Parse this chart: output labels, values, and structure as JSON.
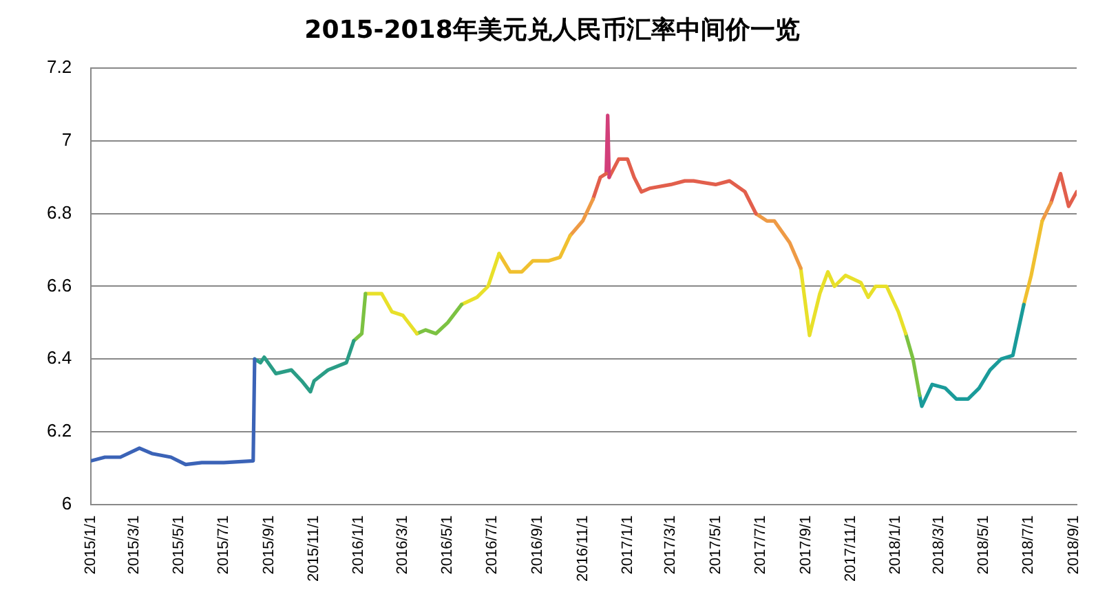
{
  "chart_data": {
    "type": "line",
    "title": "2015-2018年美元兑人民币汇率中间价一览",
    "legend": false,
    "grid": "y",
    "marker": "none",
    "line_style": "solid",
    "xlim": [
      "2015-01-01",
      "2018-09-05"
    ],
    "xticks": [
      {
        "value": "2015-01-01",
        "label": "2015/1/1"
      },
      {
        "value": "2015-03-01",
        "label": "2015/3/1"
      },
      {
        "value": "2015-05-01",
        "label": "2015/5/1"
      },
      {
        "value": "2015-07-01",
        "label": "2015/7/1"
      },
      {
        "value": "2015-09-01",
        "label": "2015/9/1"
      },
      {
        "value": "2015-11-01",
        "label": "2015/11/1"
      },
      {
        "value": "2016-01-01",
        "label": "2016/1/1"
      },
      {
        "value": "2016-03-01",
        "label": "2016/3/1"
      },
      {
        "value": "2016-05-01",
        "label": "2016/5/1"
      },
      {
        "value": "2016-07-01",
        "label": "2016/7/1"
      },
      {
        "value": "2016-09-01",
        "label": "2016/9/1"
      },
      {
        "value": "2016-11-01",
        "label": "2016/11/1"
      },
      {
        "value": "2017-01-01",
        "label": "2017/1/1"
      },
      {
        "value": "2017-03-01",
        "label": "2017/3/1"
      },
      {
        "value": "2017-05-01",
        "label": "2017/5/1"
      },
      {
        "value": "2017-07-01",
        "label": "2017/7/1"
      },
      {
        "value": "2017-09-01",
        "label": "2017/9/1"
      },
      {
        "value": "2017-11-01",
        "label": "2017/11/1"
      },
      {
        "value": "2018-01-01",
        "label": "2018/1/1"
      },
      {
        "value": "2018-03-01",
        "label": "2018/3/1"
      },
      {
        "value": "2018-05-01",
        "label": "2018/5/1"
      },
      {
        "value": "2018-07-01",
        "label": "2018/7/1"
      },
      {
        "value": "2018-09-01",
        "label": "2018/9/1"
      }
    ],
    "ylim": [
      6,
      7.2
    ],
    "yticks": [
      6,
      6.2,
      6.4,
      6.6,
      6.8,
      7,
      7.2
    ],
    "series": [
      {
        "color": "#3b63b7",
        "x": [
          "2015-01-01",
          "2015-01-20",
          "2015-02-10",
          "2015-03-08",
          "2015-03-25",
          "2015-04-20",
          "2015-05-10",
          "2015-06-01",
          "2015-07-01",
          "2015-08-10",
          "2015-08-12"
        ],
        "values": [
          6.12,
          6.13,
          6.13,
          6.155,
          6.14,
          6.13,
          6.11,
          6.115,
          6.115,
          6.12,
          6.4
        ]
      },
      {
        "color": "#2a9d86",
        "x": [
          "2015-08-12",
          "2015-08-20",
          "2015-08-25",
          "2015-09-10",
          "2015-10-01",
          "2015-10-15",
          "2015-10-27",
          "2015-11-01",
          "2015-11-20",
          "2015-12-15",
          "2015-12-25"
        ],
        "values": [
          6.4,
          6.39,
          6.405,
          6.36,
          6.37,
          6.34,
          6.31,
          6.34,
          6.37,
          6.39,
          6.45
        ]
      },
      {
        "color": "#7cc242",
        "x": [
          "2015-12-25",
          "2016-01-05",
          "2016-01-10"
        ],
        "values": [
          6.45,
          6.47,
          6.58
        ]
      },
      {
        "color": "#e8e02a",
        "x": [
          "2016-01-10",
          "2016-01-20",
          "2016-02-01",
          "2016-02-15",
          "2016-03-01",
          "2016-03-20"
        ],
        "values": [
          6.58,
          6.58,
          6.58,
          6.53,
          6.52,
          6.47
        ]
      },
      {
        "color": "#7cc242",
        "x": [
          "2016-03-20",
          "2016-04-01",
          "2016-04-15",
          "2016-05-01",
          "2016-05-20"
        ],
        "values": [
          6.47,
          6.48,
          6.47,
          6.5,
          6.55
        ]
      },
      {
        "color": "#e8e02a",
        "x": [
          "2016-05-20",
          "2016-06-10",
          "2016-06-25",
          "2016-07-10"
        ],
        "values": [
          6.55,
          6.57,
          6.6,
          6.69
        ]
      },
      {
        "color": "#f0c030",
        "x": [
          "2016-07-10",
          "2016-07-25",
          "2016-08-10",
          "2016-08-25",
          "2016-09-15",
          "2016-10-01",
          "2016-10-15"
        ],
        "values": [
          6.69,
          6.64,
          6.64,
          6.67,
          6.67,
          6.68,
          6.74
        ]
      },
      {
        "color": "#ee9a45",
        "x": [
          "2016-10-15",
          "2016-11-01",
          "2016-11-15"
        ],
        "values": [
          6.74,
          6.78,
          6.84
        ]
      },
      {
        "color": "#e25f4c",
        "x": [
          "2016-11-15",
          "2016-11-25",
          "2016-12-03"
        ],
        "values": [
          6.84,
          6.9,
          6.91
        ]
      },
      {
        "color": "#d23f7a",
        "x": [
          "2016-12-03",
          "2016-12-05",
          "2016-12-07"
        ],
        "values": [
          6.91,
          7.07,
          6.9
        ]
      },
      {
        "color": "#e25f4c",
        "x": [
          "2016-12-07",
          "2016-12-20",
          "2017-01-01",
          "2017-01-10",
          "2017-01-20",
          "2017-02-01",
          "2017-03-01",
          "2017-03-20",
          "2017-04-01",
          "2017-05-01",
          "2017-05-20",
          "2017-06-10",
          "2017-06-25"
        ],
        "values": [
          6.9,
          6.95,
          6.95,
          6.9,
          6.86,
          6.87,
          6.88,
          6.89,
          6.89,
          6.88,
          6.89,
          6.86,
          6.8
        ]
      },
      {
        "color": "#ee9a45",
        "x": [
          "2017-06-25",
          "2017-07-10",
          "2017-07-20",
          "2017-08-10",
          "2017-08-25"
        ],
        "values": [
          6.8,
          6.78,
          6.78,
          6.72,
          6.65
        ]
      },
      {
        "color": "#e8e02a",
        "x": [
          "2017-08-25",
          "2017-09-06",
          "2017-09-20",
          "2017-10-01",
          "2017-10-10",
          "2017-10-25",
          "2017-11-15",
          "2017-11-25",
          "2017-12-05",
          "2017-12-20",
          "2018-01-05",
          "2018-01-15"
        ],
        "values": [
          6.65,
          6.465,
          6.58,
          6.64,
          6.6,
          6.63,
          6.61,
          6.57,
          6.6,
          6.6,
          6.53,
          6.47
        ]
      },
      {
        "color": "#7cc242",
        "x": [
          "2018-01-15",
          "2018-01-25",
          "2018-02-03"
        ],
        "values": [
          6.47,
          6.4,
          6.3
        ]
      },
      {
        "color": "#1a9b9a",
        "x": [
          "2018-02-03",
          "2018-02-06",
          "2018-02-20",
          "2018-03-10",
          "2018-03-25",
          "2018-04-10",
          "2018-04-25",
          "2018-05-10",
          "2018-05-25",
          "2018-06-10",
          "2018-06-25"
        ],
        "values": [
          6.3,
          6.27,
          6.33,
          6.32,
          6.29,
          6.29,
          6.32,
          6.37,
          6.4,
          6.41,
          6.55
        ]
      },
      {
        "color": "#f0c030",
        "x": [
          "2018-06-25",
          "2018-07-05",
          "2018-07-20"
        ],
        "values": [
          6.55,
          6.63,
          6.78
        ]
      },
      {
        "color": "#ee9a45",
        "x": [
          "2018-07-20",
          "2018-08-01"
        ],
        "values": [
          6.78,
          6.83
        ]
      },
      {
        "color": "#e25f4c",
        "x": [
          "2018-08-01",
          "2018-08-14",
          "2018-08-25",
          "2018-09-05"
        ],
        "values": [
          6.83,
          6.91,
          6.82,
          6.86
        ]
      }
    ]
  }
}
